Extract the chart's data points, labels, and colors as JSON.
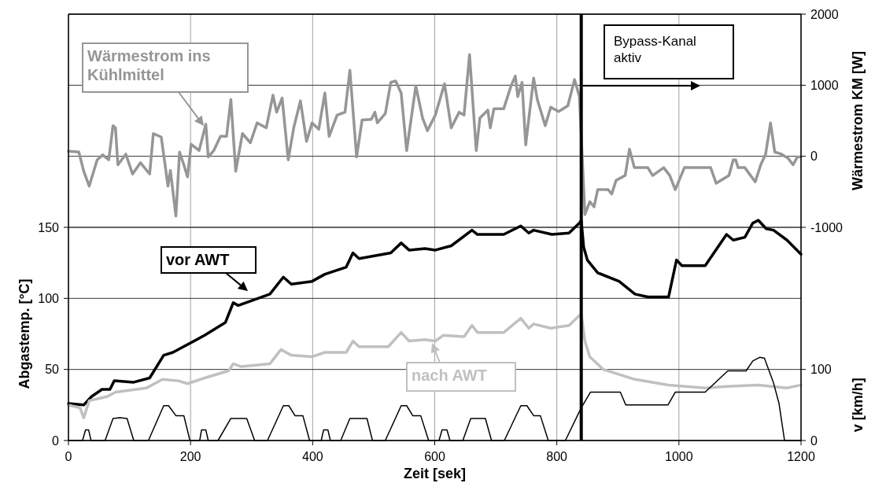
{
  "chart_data": {
    "type": "line",
    "xlabel": "Zeit [sek]",
    "ylabel": "Abgastemp. [°C]",
    "y2label": "Wärmestrom KM [W]",
    "y3label": "v [km/h]",
    "xlim": [
      0,
      1200
    ],
    "xticks": [
      0,
      200,
      400,
      600,
      800,
      1000,
      1200
    ],
    "ylim": [
      0,
      300
    ],
    "yticks": [
      0,
      50,
      100,
      150
    ],
    "y2lim": [
      -4000,
      2000
    ],
    "y2ticks": [
      -1000,
      0,
      1000,
      2000
    ],
    "y3lim": [
      0,
      600
    ],
    "y3ticks": [
      0,
      100
    ],
    "grid": true,
    "line_style": "solid",
    "marker": "none",
    "ref_lines": [
      {
        "axis": "x",
        "value": 840,
        "label": "Bypass-Kanal aktiv",
        "color": "#000000"
      }
    ],
    "series": [
      {
        "name": "Wärmestrom ins Kühlmittel",
        "color": "#969696",
        "axis": "y2",
        "x": [
          0,
          17,
          25,
          34,
          47,
          56,
          66,
          73,
          77,
          81,
          94,
          105,
          118,
          133,
          139,
          152,
          163,
          167,
          176,
          182,
          189,
          195,
          201,
          214,
          225,
          229,
          238,
          249,
          259,
          266,
          274,
          285,
          298,
          309,
          324,
          335,
          341,
          350,
          360,
          369,
          380,
          390,
          399,
          410,
          420,
          427,
          440,
          453,
          461,
          472,
          481,
          496,
          502,
          506,
          519,
          528,
          536,
          545,
          554,
          569,
          580,
          588,
          601,
          616,
          627,
          640,
          648,
          657,
          668,
          674,
          687,
          691,
          697,
          713,
          725,
          732,
          736,
          743,
          749,
          762,
          768,
          781,
          790,
          803,
          818,
          829,
          837,
          846,
          854,
          861,
          867,
          884,
          890,
          897,
          912,
          919,
          927,
          949,
          957,
          975,
          985,
          994,
          1009,
          1026,
          1052,
          1061,
          1082,
          1089,
          1093,
          1097,
          1108,
          1125,
          1134,
          1142,
          1150,
          1157,
          1168,
          1179,
          1187,
          1194,
          1200
        ],
        "values": [
          70,
          60,
          -210,
          -420,
          -50,
          20,
          -50,
          430,
          400,
          -120,
          30,
          -250,
          -90,
          -250,
          320,
          270,
          -420,
          -200,
          -840,
          60,
          -120,
          -290,
          170,
          80,
          450,
          -10,
          80,
          280,
          280,
          800,
          -210,
          320,
          190,
          470,
          400,
          860,
          620,
          820,
          -50,
          400,
          780,
          210,
          470,
          380,
          890,
          280,
          580,
          620,
          1210,
          -10,
          510,
          520,
          620,
          470,
          600,
          1040,
          1060,
          890,
          80,
          990,
          540,
          360,
          580,
          1020,
          400,
          620,
          580,
          1430,
          80,
          540,
          650,
          400,
          670,
          670,
          990,
          1130,
          840,
          1040,
          160,
          1100,
          800,
          430,
          690,
          630,
          710,
          1080,
          840,
          -820,
          -640,
          -710,
          -470,
          -470,
          -530,
          -340,
          -270,
          100,
          -160,
          -160,
          -270,
          -160,
          -270,
          -470,
          -160,
          -160,
          -160,
          -380,
          -270,
          -50,
          -50,
          -160,
          -160,
          -360,
          -120,
          30,
          470,
          60,
          30,
          -30,
          -120,
          -10,
          -10
        ]
      },
      {
        "name": "vor AWT",
        "color": "#000000",
        "x": [
          0,
          25,
          38,
          55,
          68,
          75,
          107,
          133,
          156,
          171,
          223,
          257,
          270,
          278,
          330,
          352,
          365,
          399,
          420,
          455,
          466,
          476,
          528,
          545,
          558,
          584,
          601,
          627,
          661,
          670,
          713,
          741,
          754,
          762,
          792,
          820,
          837,
          840,
          844,
          850,
          867,
          902,
          928,
          949,
          983,
          996,
          1005,
          1043,
          1078,
          1089,
          1108,
          1121,
          1130,
          1143,
          1155,
          1177,
          1200
        ],
        "values": [
          26,
          25,
          31,
          36,
          36,
          42,
          41,
          44,
          60,
          62,
          74,
          83,
          97,
          95,
          103,
          115,
          110,
          112,
          117,
          122,
          132,
          128,
          132,
          139,
          134,
          135,
          134,
          137,
          148,
          145,
          145,
          151,
          146,
          148,
          145,
          146,
          153,
          155,
          136,
          127,
          118,
          112,
          103,
          101,
          101,
          127,
          123,
          123,
          145,
          141,
          143,
          153,
          155,
          149,
          148,
          141,
          131
        ]
      },
      {
        "name": "nach AWT",
        "color": "#c0c0c0",
        "x": [
          0,
          19,
          25,
          34,
          64,
          77,
          128,
          154,
          180,
          195,
          223,
          262,
          270,
          283,
          330,
          348,
          365,
          399,
          420,
          455,
          466,
          476,
          524,
          545,
          558,
          584,
          601,
          614,
          648,
          661,
          670,
          713,
          741,
          754,
          762,
          790,
          820,
          837,
          840,
          846,
          854,
          876,
          928,
          983,
          1043,
          1078,
          1130,
          1177,
          1200
        ],
        "values": [
          25,
          23,
          16,
          28,
          31,
          34,
          37,
          43,
          42,
          40,
          44,
          49,
          54,
          52,
          54,
          64,
          60,
          59,
          62,
          62,
          70,
          66,
          66,
          76,
          70,
          71,
          70,
          74,
          73,
          81,
          76,
          76,
          86,
          79,
          82,
          79,
          81,
          88,
          89,
          70,
          59,
          50,
          43,
          39,
          37,
          38,
          39,
          37,
          39
        ]
      },
      {
        "color": "#000000",
        "axis": "y3",
        "x": [
          0,
          23,
          28,
          33,
          37,
          60,
          73,
          84,
          96,
          107,
          131,
          156,
          164,
          176,
          189,
          199,
          215,
          218,
          225,
          229,
          245,
          266,
          292,
          305,
          326,
          352,
          361,
          371,
          384,
          395,
          414,
          418,
          425,
          429,
          446,
          461,
          489,
          498,
          519,
          545,
          554,
          564,
          577,
          590,
          607,
          612,
          620,
          625,
          646,
          659,
          683,
          693,
          714,
          741,
          751,
          762,
          773,
          786,
          814,
          840,
          855,
          904,
          913,
          982,
          994,
          1043,
          1080,
          1110,
          1121,
          1132,
          1140,
          1155,
          1164,
          1173,
          1200
        ],
        "values": [
          0,
          0,
          15,
          15,
          0,
          0,
          31,
          32,
          31,
          0,
          0,
          49,
          49,
          35,
          35,
          0,
          0,
          15,
          15,
          0,
          0,
          31,
          31,
          0,
          0,
          49,
          49,
          35,
          35,
          0,
          0,
          15,
          15,
          0,
          0,
          31,
          31,
          0,
          0,
          49,
          49,
          35,
          35,
          0,
          0,
          15,
          15,
          0,
          0,
          31,
          31,
          0,
          0,
          49,
          49,
          35,
          35,
          0,
          0,
          46,
          68,
          68,
          50,
          50,
          68,
          68,
          98,
          98,
          112,
          117,
          116,
          81,
          52,
          0,
          0
        ]
      }
    ]
  }
}
